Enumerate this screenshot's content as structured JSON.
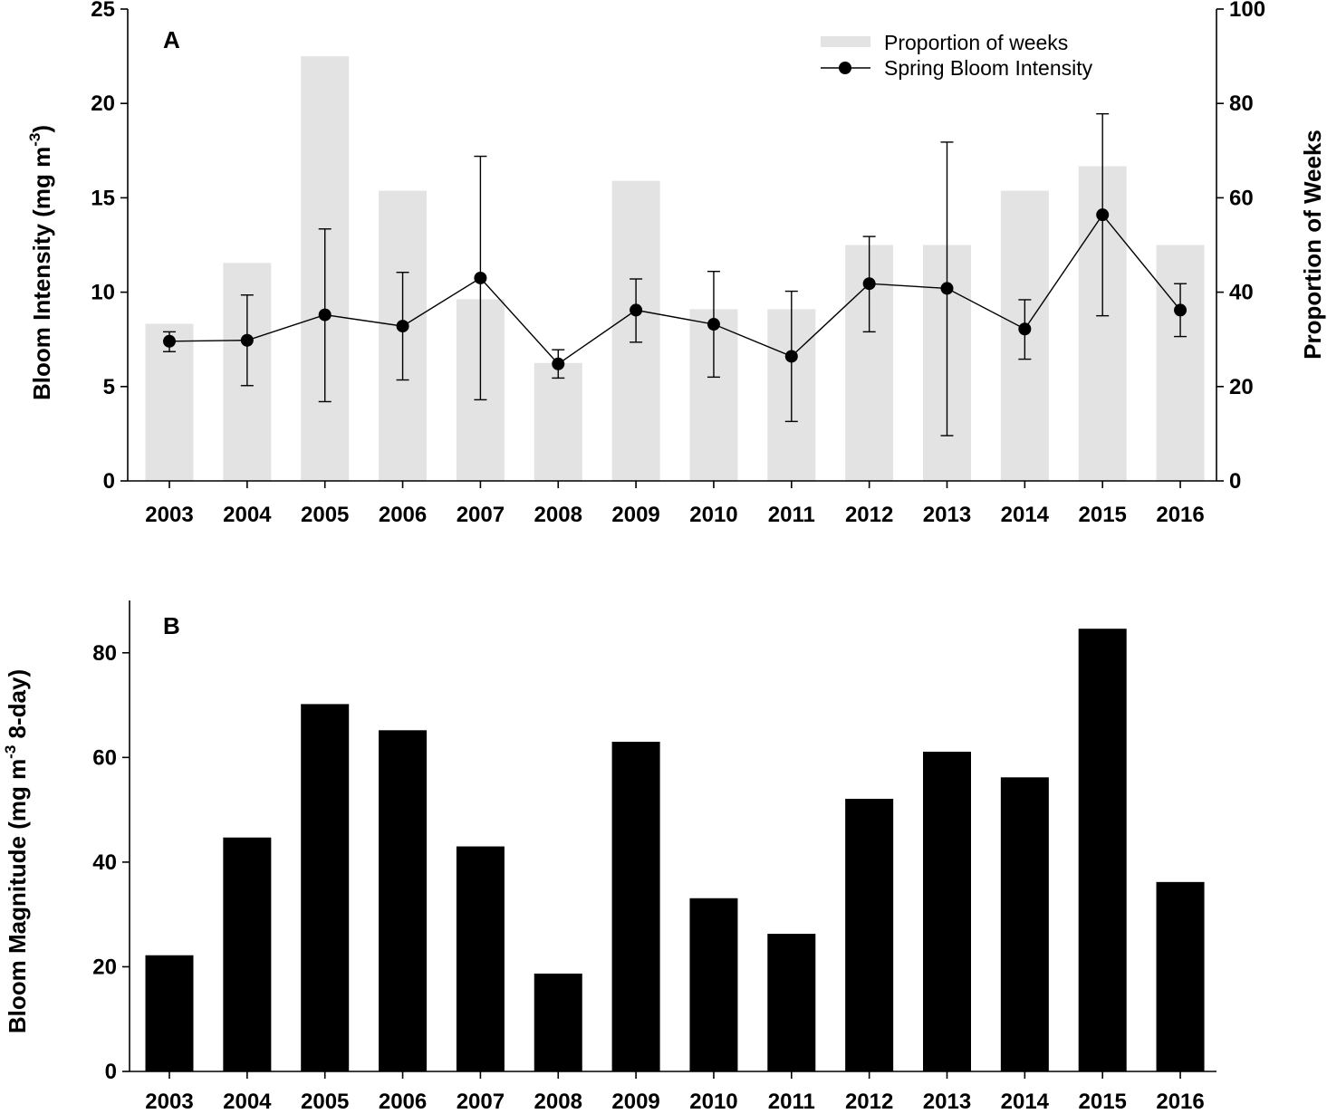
{
  "chart_data": [
    {
      "type": "bar+line",
      "panel_label": "A",
      "categories": [
        "2003",
        "2004",
        "2005",
        "2006",
        "2007",
        "2008",
        "2009",
        "2010",
        "2011",
        "2012",
        "2013",
        "2014",
        "2015",
        "2016"
      ],
      "ylabel": "Bloom Intensity (mg m",
      "ylabel_sup": "-3",
      "ylabel_end": ")",
      "ylim": [
        0,
        25
      ],
      "yticks": [
        "0",
        "5",
        "10",
        "15",
        "20",
        "25"
      ],
      "y2label": "Proportion of Weeks",
      "y2lim": [
        0,
        100
      ],
      "y2ticks": [
        "0",
        "20",
        "40",
        "60",
        "80",
        "100"
      ],
      "legend": {
        "position": "top-right",
        "bar_entry": "Proportion of weeks",
        "line_entry": "Spring Bloom Intensity"
      },
      "series": [
        {
          "name": "Proportion of weeks",
          "axis": "right",
          "kind": "bar",
          "color": "#e3e3e3",
          "values": [
            33.3,
            46.2,
            90.0,
            61.5,
            38.5,
            25.0,
            63.6,
            36.4,
            36.4,
            50.0,
            50.0,
            61.5,
            66.7,
            50.0
          ]
        },
        {
          "name": "Spring Bloom Intensity",
          "axis": "left",
          "kind": "line",
          "color": "#000000",
          "values": [
            7.4,
            7.45,
            8.8,
            8.2,
            10.75,
            6.2,
            9.05,
            8.3,
            6.6,
            10.45,
            10.2,
            8.05,
            14.1,
            9.05
          ],
          "error_upper": [
            7.9,
            9.85,
            13.35,
            11.05,
            17.2,
            6.95,
            10.7,
            11.1,
            10.05,
            12.95,
            17.95,
            9.6,
            19.45,
            10.45
          ],
          "error_lower": [
            6.85,
            5.05,
            4.2,
            5.35,
            4.3,
            5.45,
            7.35,
            5.5,
            3.15,
            7.9,
            2.4,
            6.45,
            8.75,
            7.65
          ]
        }
      ]
    },
    {
      "type": "bar",
      "panel_label": "B",
      "categories": [
        "2003",
        "2004",
        "2005",
        "2006",
        "2007",
        "2008",
        "2009",
        "2010",
        "2011",
        "2012",
        "2013",
        "2014",
        "2015",
        "2016"
      ],
      "ylabel": "Bloom Magnitude (mg m",
      "ylabel_sup": "-3",
      "ylabel_end": " 8-day)",
      "ylim": [
        0,
        90
      ],
      "yticks": [
        "0",
        "20",
        "40",
        "60",
        "80"
      ],
      "series": [
        {
          "name": "Bloom Magnitude",
          "color": "#000000",
          "values": [
            22.2,
            44.7,
            70.2,
            65.2,
            43.0,
            18.7,
            63.0,
            33.1,
            26.3,
            52.1,
            61.1,
            56.2,
            84.6,
            36.2
          ]
        }
      ]
    }
  ]
}
